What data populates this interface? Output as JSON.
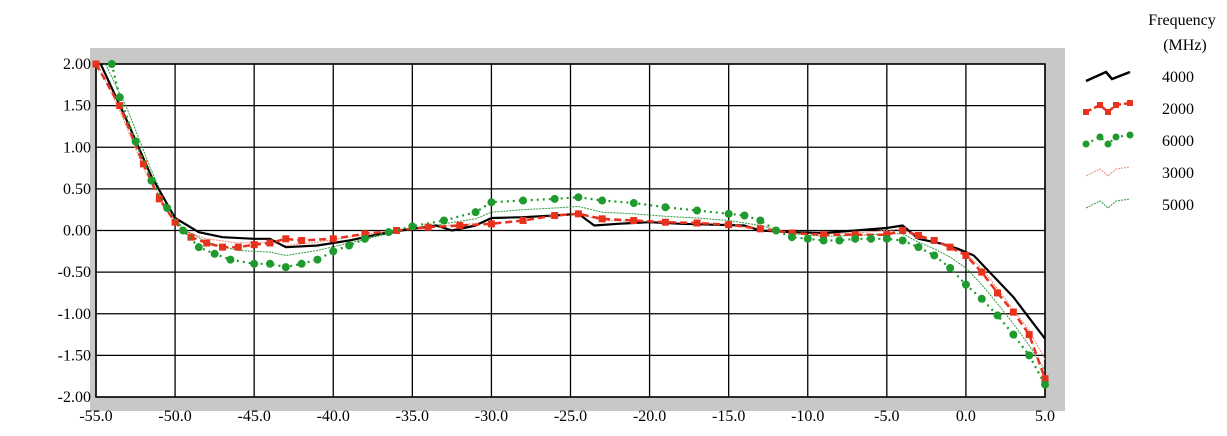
{
  "chart_data": {
    "type": "line",
    "title": "",
    "xlabel": "",
    "ylabel": "",
    "xlim": [
      -55,
      5
    ],
    "ylim": [
      -2,
      2
    ],
    "x_ticks": [
      -55,
      -50,
      -45,
      -40,
      -35,
      -30,
      -25,
      -20,
      -15,
      -10,
      -5,
      0,
      5
    ],
    "x_tick_labels": [
      "-55.0",
      "-50.0",
      "-45.0",
      "-40.0",
      "-35.0",
      "-30.0",
      "-25.0",
      "-20.0",
      "-15.0",
      "-10.0",
      "-5.0",
      "0.0",
      "5.0"
    ],
    "y_ticks": [
      2,
      1.5,
      1,
      0.5,
      0,
      -0.5,
      -1,
      -1.5,
      -2
    ],
    "y_tick_labels": [
      "2.00",
      "1.50",
      "1.00",
      "0.50",
      "0.00",
      "-0.50",
      "-1.00",
      "-1.50",
      "-2.00"
    ],
    "grid": true,
    "legend": {
      "title_line1": "Frequency",
      "title_line2": "(MHz)",
      "position": "right"
    },
    "series": [
      {
        "name": "4000",
        "color": "#000000",
        "style": "solid",
        "points": [
          [
            -54.7,
            2.0
          ],
          [
            -53,
            1.3
          ],
          [
            -51.5,
            0.65
          ],
          [
            -50,
            0.15
          ],
          [
            -48.5,
            -0.02
          ],
          [
            -47,
            -0.08
          ],
          [
            -45,
            -0.1
          ],
          [
            -44,
            -0.1
          ],
          [
            -43,
            -0.2
          ],
          [
            -41,
            -0.18
          ],
          [
            -39,
            -0.12
          ],
          [
            -37,
            -0.04
          ],
          [
            -35,
            0.02
          ],
          [
            -33.5,
            0.06
          ],
          [
            -32.5,
            0.0
          ],
          [
            -31,
            0.06
          ],
          [
            -30,
            0.15
          ],
          [
            -28,
            0.16
          ],
          [
            -26,
            0.18
          ],
          [
            -24.5,
            0.2
          ],
          [
            -23.5,
            0.06
          ],
          [
            -22,
            0.08
          ],
          [
            -20,
            0.1
          ],
          [
            -18,
            0.08
          ],
          [
            -16,
            0.07
          ],
          [
            -14,
            0.06
          ],
          [
            -13,
            0.0
          ],
          [
            -11,
            -0.02
          ],
          [
            -9,
            -0.03
          ],
          [
            -7,
            0.0
          ],
          [
            -5,
            0.03
          ],
          [
            -4,
            0.06
          ],
          [
            -3,
            -0.1
          ],
          [
            -1.5,
            -0.16
          ],
          [
            -0.5,
            -0.22
          ],
          [
            0.5,
            -0.3
          ],
          [
            1.5,
            -0.5
          ],
          [
            3,
            -0.8
          ],
          [
            4.2,
            -1.1
          ],
          [
            5,
            -1.3
          ]
        ]
      },
      {
        "name": "2000",
        "color": "#e8321e",
        "style": "dashed-square",
        "points": [
          [
            -55,
            2.0
          ],
          [
            -53.5,
            1.5
          ],
          [
            -52,
            0.8
          ],
          [
            -51,
            0.38
          ],
          [
            -50,
            0.1
          ],
          [
            -49,
            -0.08
          ],
          [
            -48,
            -0.15
          ],
          [
            -47,
            -0.2
          ],
          [
            -46,
            -0.2
          ],
          [
            -45,
            -0.17
          ],
          [
            -44,
            -0.15
          ],
          [
            -43,
            -0.1
          ],
          [
            -42,
            -0.12
          ],
          [
            -40,
            -0.1
          ],
          [
            -38,
            -0.04
          ],
          [
            -36,
            0.0
          ],
          [
            -34,
            0.04
          ],
          [
            -32,
            0.06
          ],
          [
            -30,
            0.08
          ],
          [
            -28,
            0.12
          ],
          [
            -26,
            0.18
          ],
          [
            -24.5,
            0.2
          ],
          [
            -23,
            0.14
          ],
          [
            -21,
            0.12
          ],
          [
            -19,
            0.1
          ],
          [
            -17,
            0.09
          ],
          [
            -15,
            0.07
          ],
          [
            -13,
            0.02
          ],
          [
            -11,
            -0.03
          ],
          [
            -9,
            -0.05
          ],
          [
            -7,
            -0.05
          ],
          [
            -5,
            -0.05
          ],
          [
            -4,
            0.0
          ],
          [
            -3,
            -0.06
          ],
          [
            -2,
            -0.12
          ],
          [
            -1,
            -0.2
          ],
          [
            0,
            -0.3
          ],
          [
            1,
            -0.5
          ],
          [
            2,
            -0.75
          ],
          [
            3,
            -0.98
          ],
          [
            4,
            -1.25
          ],
          [
            5,
            -1.78
          ]
        ]
      },
      {
        "name": "6000",
        "color": "#1f9a2e",
        "style": "dotted-circle",
        "points": [
          [
            -54,
            2.0
          ],
          [
            -53.5,
            1.6
          ],
          [
            -52.5,
            1.07
          ],
          [
            -51.5,
            0.6
          ],
          [
            -50.5,
            0.27
          ],
          [
            -49.5,
            0.0
          ],
          [
            -48.5,
            -0.2
          ],
          [
            -47.5,
            -0.28
          ],
          [
            -46.5,
            -0.35
          ],
          [
            -45,
            -0.4
          ],
          [
            -44,
            -0.4
          ],
          [
            -43,
            -0.44
          ],
          [
            -42,
            -0.4
          ],
          [
            -41,
            -0.35
          ],
          [
            -40,
            -0.25
          ],
          [
            -39,
            -0.18
          ],
          [
            -38,
            -0.1
          ],
          [
            -36.5,
            -0.02
          ],
          [
            -35,
            0.05
          ],
          [
            -33,
            0.12
          ],
          [
            -31,
            0.22
          ],
          [
            -30,
            0.34
          ],
          [
            -28,
            0.36
          ],
          [
            -26,
            0.38
          ],
          [
            -24.5,
            0.4
          ],
          [
            -23,
            0.36
          ],
          [
            -21,
            0.33
          ],
          [
            -19,
            0.28
          ],
          [
            -17,
            0.24
          ],
          [
            -15,
            0.2
          ],
          [
            -14,
            0.18
          ],
          [
            -13,
            0.12
          ],
          [
            -12,
            0.0
          ],
          [
            -11,
            -0.08
          ],
          [
            -10,
            -0.1
          ],
          [
            -9,
            -0.12
          ],
          [
            -8,
            -0.12
          ],
          [
            -7,
            -0.1
          ],
          [
            -6,
            -0.1
          ],
          [
            -5,
            -0.1
          ],
          [
            -4,
            -0.12
          ],
          [
            -3,
            -0.2
          ],
          [
            -2,
            -0.3
          ],
          [
            -1,
            -0.45
          ],
          [
            0,
            -0.65
          ],
          [
            1,
            -0.82
          ],
          [
            2,
            -1.02
          ],
          [
            3,
            -1.25
          ],
          [
            4,
            -1.5
          ],
          [
            5,
            -1.85
          ]
        ]
      },
      {
        "name": "3000",
        "color": "#f08a78",
        "style": "thin",
        "points": [
          [
            -54.9,
            2.0
          ],
          [
            -53.4,
            1.4
          ],
          [
            -52,
            0.75
          ],
          [
            -50.5,
            0.25
          ],
          [
            -49.5,
            0.0
          ],
          [
            -48,
            -0.1
          ],
          [
            -46,
            -0.15
          ],
          [
            -44,
            -0.14
          ],
          [
            -43,
            -0.18
          ],
          [
            -41,
            -0.14
          ],
          [
            -39,
            -0.08
          ],
          [
            -37,
            -0.02
          ],
          [
            -35,
            0.03
          ],
          [
            -33,
            0.06
          ],
          [
            -31,
            0.08
          ],
          [
            -30,
            0.14
          ],
          [
            -28,
            0.16
          ],
          [
            -26,
            0.18
          ],
          [
            -24.5,
            0.2
          ],
          [
            -23,
            0.12
          ],
          [
            -21,
            0.11
          ],
          [
            -19,
            0.09
          ],
          [
            -17,
            0.08
          ],
          [
            -15,
            0.07
          ],
          [
            -13,
            0.01
          ],
          [
            -11,
            -0.02
          ],
          [
            -9,
            -0.04
          ],
          [
            -7,
            -0.03
          ],
          [
            -5,
            0.0
          ],
          [
            -4,
            0.02
          ],
          [
            -3,
            -0.08
          ],
          [
            -2,
            -0.14
          ],
          [
            -1,
            -0.2
          ],
          [
            0,
            -0.28
          ],
          [
            1,
            -0.45
          ],
          [
            2,
            -0.7
          ],
          [
            3,
            -0.95
          ],
          [
            4,
            -1.2
          ],
          [
            5,
            -1.55
          ]
        ]
      },
      {
        "name": "5000",
        "color": "#2e9a3a",
        "style": "thin",
        "points": [
          [
            -54.4,
            2.0
          ],
          [
            -53,
            1.45
          ],
          [
            -51.5,
            0.72
          ],
          [
            -50.5,
            0.3
          ],
          [
            -49.5,
            0.02
          ],
          [
            -48,
            -0.14
          ],
          [
            -46,
            -0.24
          ],
          [
            -44,
            -0.26
          ],
          [
            -43,
            -0.3
          ],
          [
            -41,
            -0.24
          ],
          [
            -39,
            -0.15
          ],
          [
            -37,
            -0.06
          ],
          [
            -35,
            0.02
          ],
          [
            -33,
            0.08
          ],
          [
            -31,
            0.14
          ],
          [
            -30,
            0.22
          ],
          [
            -28,
            0.25
          ],
          [
            -26,
            0.27
          ],
          [
            -24.5,
            0.29
          ],
          [
            -23,
            0.22
          ],
          [
            -21,
            0.2
          ],
          [
            -19,
            0.17
          ],
          [
            -17,
            0.15
          ],
          [
            -15,
            0.12
          ],
          [
            -13,
            0.06
          ],
          [
            -11,
            -0.04
          ],
          [
            -9,
            -0.07
          ],
          [
            -7,
            -0.06
          ],
          [
            -5,
            -0.04
          ],
          [
            -4,
            -0.04
          ],
          [
            -3,
            -0.14
          ],
          [
            -2,
            -0.22
          ],
          [
            -1,
            -0.32
          ],
          [
            0,
            -0.45
          ],
          [
            1,
            -0.65
          ],
          [
            2,
            -0.88
          ],
          [
            3,
            -1.12
          ],
          [
            4,
            -1.38
          ],
          [
            5,
            -1.68
          ]
        ]
      }
    ]
  }
}
